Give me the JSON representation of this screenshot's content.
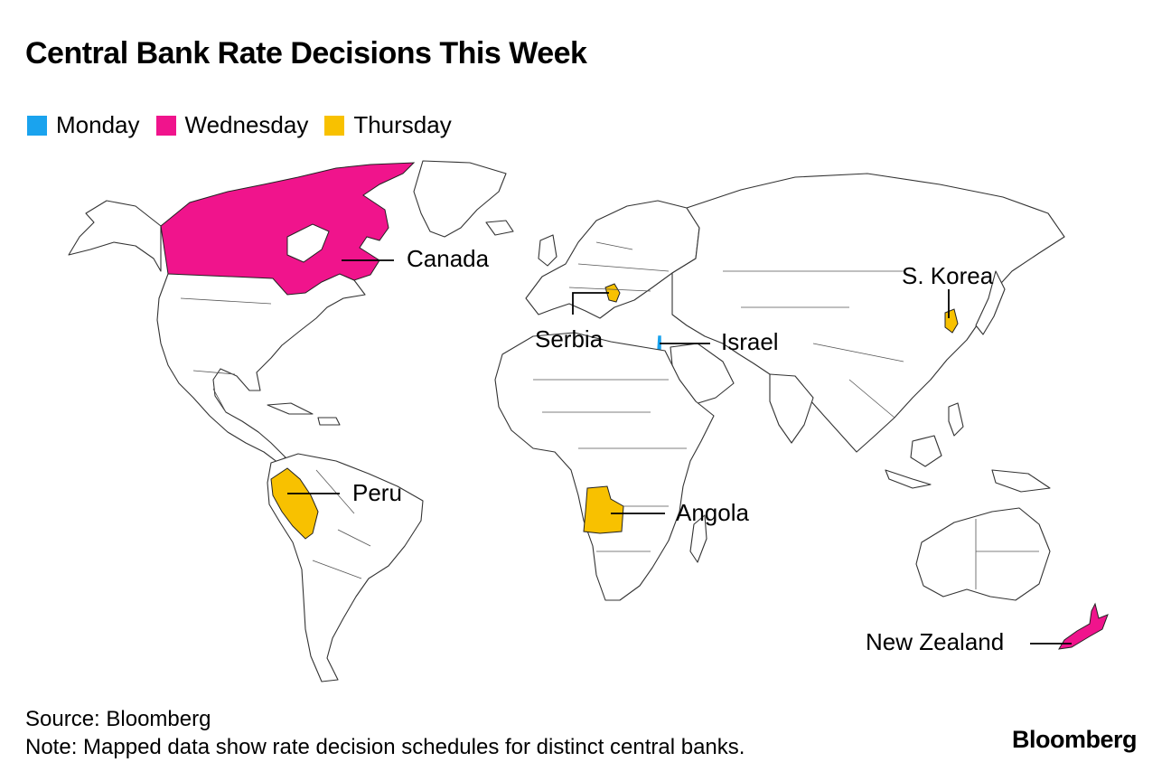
{
  "title": "Central Bank Rate Decisions This Week",
  "legend": [
    {
      "label": "Monday",
      "color": "#1aa3ee"
    },
    {
      "label": "Wednesday",
      "color": "#f0148c"
    },
    {
      "label": "Thursday",
      "color": "#f8c100"
    }
  ],
  "countries": {
    "canada": {
      "label": "Canada",
      "day": "Wednesday"
    },
    "s_korea": {
      "label": "S. Korea",
      "day": "Thursday"
    },
    "serbia": {
      "label": "Serbia",
      "day": "Thursday"
    },
    "israel": {
      "label": "Israel",
      "day": "Monday"
    },
    "peru": {
      "label": "Peru",
      "day": "Thursday"
    },
    "angola": {
      "label": "Angola",
      "day": "Thursday"
    },
    "new_zealand": {
      "label": "New Zealand",
      "day": "Wednesday"
    }
  },
  "footer": {
    "source": "Source: Bloomberg",
    "note": "Note: Mapped data show rate decision schedules for distinct central banks."
  },
  "brand": "Bloomberg"
}
